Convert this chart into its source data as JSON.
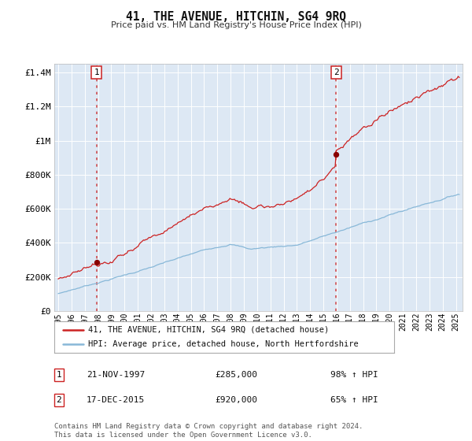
{
  "title": "41, THE AVENUE, HITCHIN, SG4 9RQ",
  "subtitle": "Price paid vs. HM Land Registry's House Price Index (HPI)",
  "background_color": "#ffffff",
  "plot_bg_color": "#dde8f4",
  "grid_color": "#ffffff",
  "ylim": [
    0,
    1450000
  ],
  "xlim": [
    1994.7,
    2025.5
  ],
  "sale1_date": 1997.9,
  "sale1_price": 285000,
  "sale1_label": "1",
  "sale2_date": 2015.97,
  "sale2_price": 920000,
  "sale2_label": "2",
  "red_line_color": "#cc2222",
  "blue_line_color": "#88b8d8",
  "sale_dot_color": "#880000",
  "vline_color": "#cc3333",
  "legend_label_red": "41, THE AVENUE, HITCHIN, SG4 9RQ (detached house)",
  "legend_label_blue": "HPI: Average price, detached house, North Hertfordshire",
  "annotation1_date": "21-NOV-1997",
  "annotation1_price": "£285,000",
  "annotation1_hpi": "98% ↑ HPI",
  "annotation2_date": "17-DEC-2015",
  "annotation2_price": "£920,000",
  "annotation2_hpi": "65% ↑ HPI",
  "footer1": "Contains HM Land Registry data © Crown copyright and database right 2024.",
  "footer2": "This data is licensed under the Open Government Licence v3.0.",
  "ytick_labels": [
    "£0",
    "£200K",
    "£400K",
    "£600K",
    "£800K",
    "£1M",
    "£1.2M",
    "£1.4M"
  ],
  "ytick_values": [
    0,
    200000,
    400000,
    600000,
    800000,
    1000000,
    1200000,
    1400000
  ]
}
